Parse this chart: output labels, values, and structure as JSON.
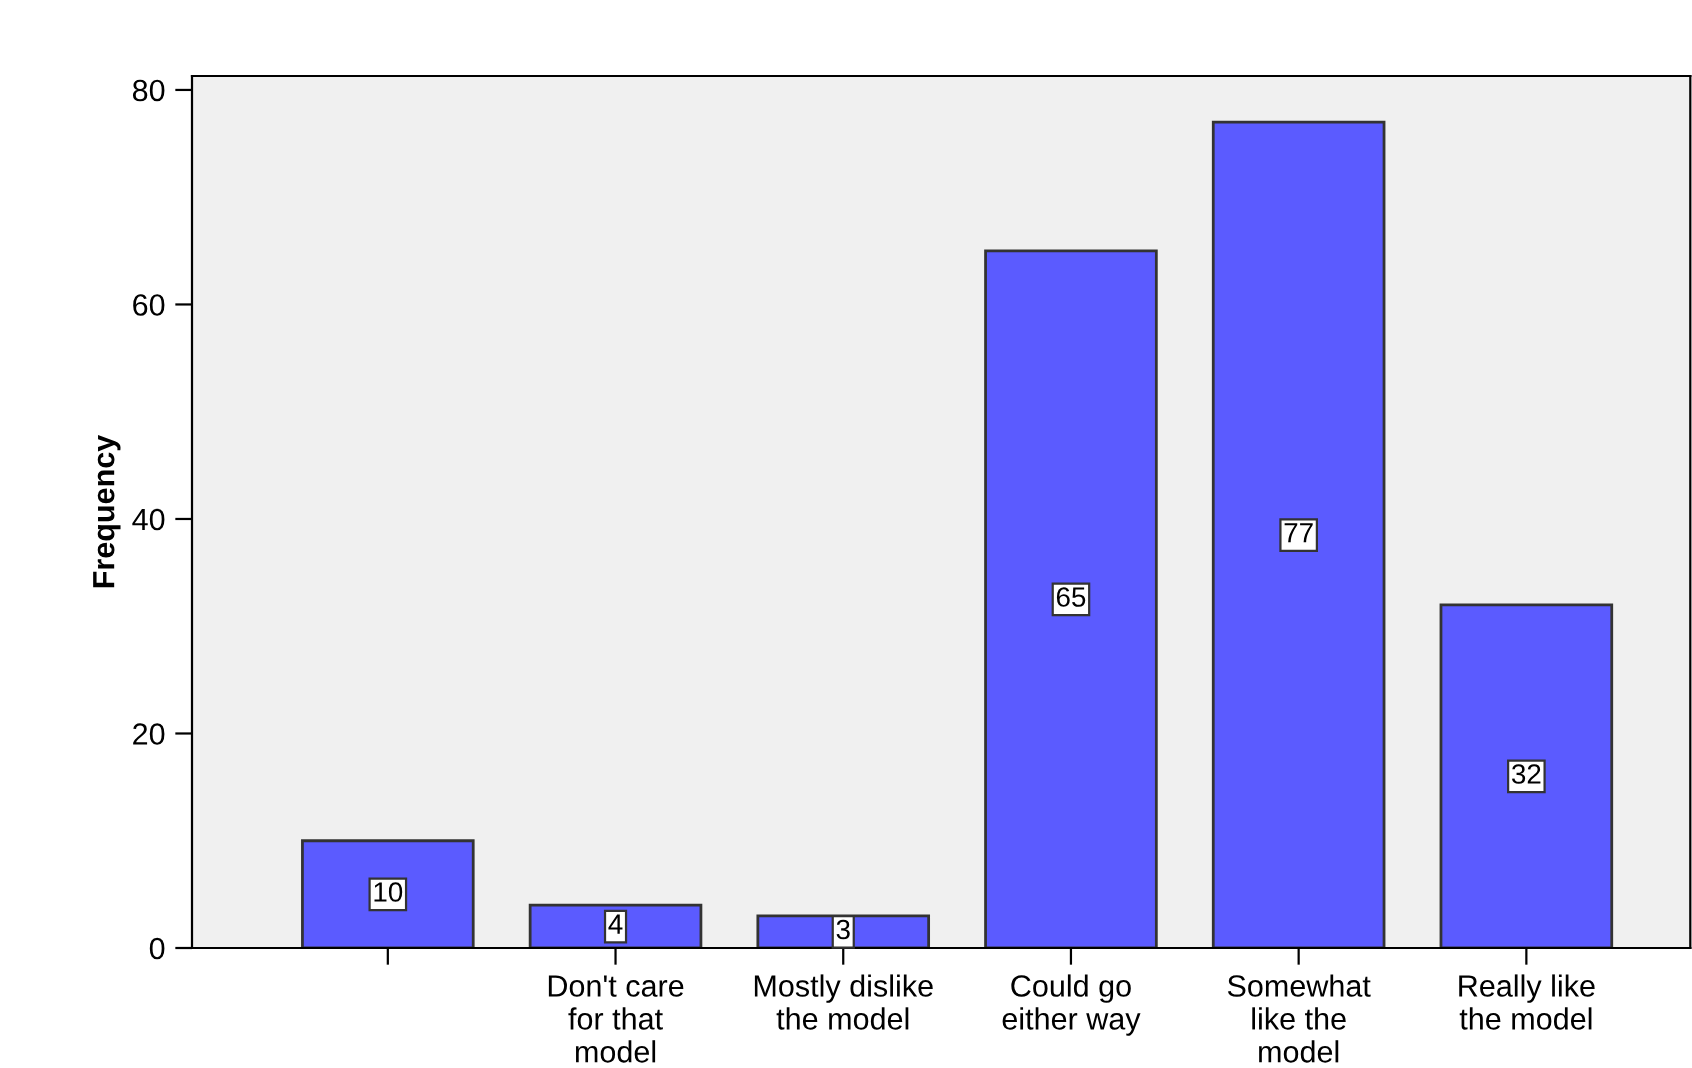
{
  "chart_data": {
    "type": "bar",
    "categories": [
      null,
      "Don't care\nfor that\nmodel",
      "Mostly dislike\nthe model",
      "Could go\neither way",
      "Somewhat\nlike the\nmodel",
      "Really like\nthe model"
    ],
    "values": [
      10,
      4,
      3,
      65,
      77,
      32
    ],
    "color": "#5b5bff",
    "ylabel": "Frequency",
    "ylim": [
      0,
      81.3
    ],
    "yticks": [
      0,
      20,
      40,
      60,
      80
    ],
    "grid": false,
    "data_labels": true
  }
}
